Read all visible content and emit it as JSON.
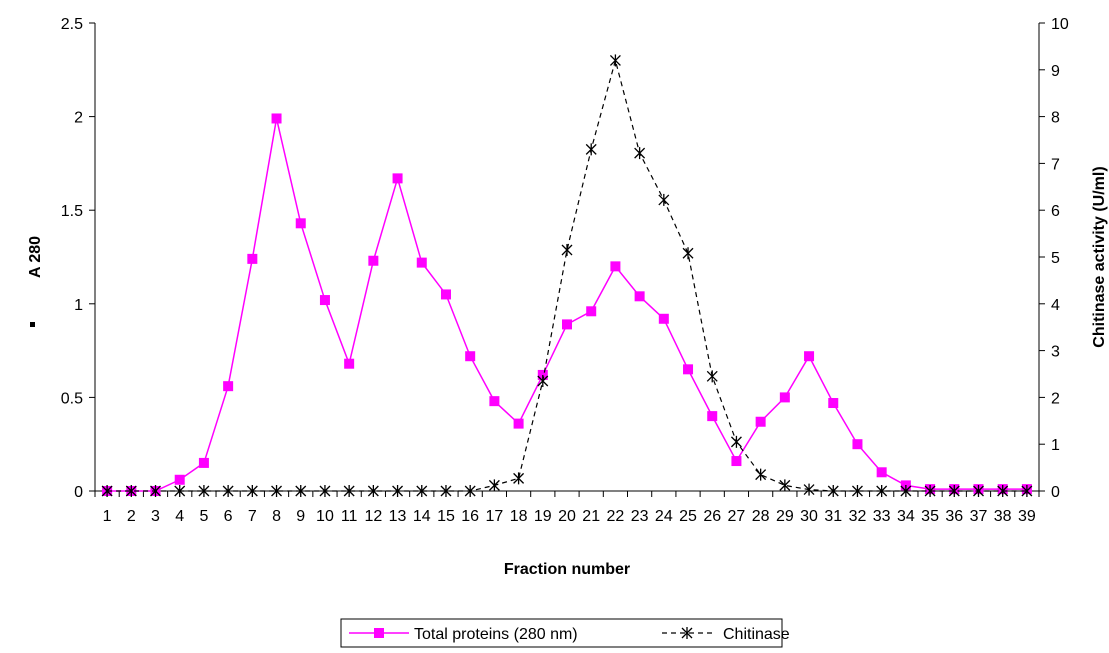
{
  "chart_data": {
    "type": "line",
    "title": "",
    "xlabel": "Fraction number",
    "ylabel_left": "A 280",
    "ylabel_right": "Chitinase activity (U/ml)",
    "x": [
      1,
      2,
      3,
      4,
      5,
      6,
      7,
      8,
      9,
      10,
      11,
      12,
      13,
      14,
      15,
      16,
      17,
      18,
      19,
      20,
      21,
      22,
      23,
      24,
      25,
      26,
      27,
      28,
      29,
      30,
      31,
      32,
      33,
      34,
      35,
      36,
      37,
      38,
      39
    ],
    "ylim_left": [
      0,
      2.5
    ],
    "yticks_left": [
      "0",
      "0.5",
      "1",
      "1.5",
      "2",
      "2.5"
    ],
    "ylim_right": [
      0,
      10
    ],
    "yticks_right": [
      "0",
      "1",
      "2",
      "3",
      "4",
      "5",
      "6",
      "7",
      "8",
      "9",
      "10"
    ],
    "grid": false,
    "legend_position": "bottom",
    "series": [
      {
        "name": "Total proteins (280 nm)",
        "axis": "left",
        "color": "#ff00ff",
        "line_style": "solid",
        "marker": "square",
        "values": [
          0,
          0,
          0,
          0.06,
          0.15,
          0.56,
          1.24,
          1.99,
          1.43,
          1.02,
          0.68,
          1.23,
          1.67,
          1.22,
          1.05,
          0.72,
          0.48,
          0.36,
          0.62,
          0.89,
          0.96,
          1.2,
          1.04,
          0.92,
          0.65,
          0.4,
          0.16,
          0.37,
          0.5,
          0.72,
          0.47,
          0.25,
          0.1,
          0.03,
          0.01,
          0.01,
          0.01,
          0.01,
          0.01
        ]
      },
      {
        "name": "Chitinase",
        "axis": "right",
        "color": "#000000",
        "line_style": "dashed",
        "marker": "asterisk",
        "values": [
          0,
          0,
          0,
          0,
          0,
          0,
          0,
          0,
          0,
          0,
          0,
          0,
          0,
          0,
          0,
          0,
          0.12,
          0.27,
          2.35,
          5.15,
          7.3,
          9.2,
          7.22,
          6.22,
          5.08,
          2.45,
          1.05,
          0.35,
          0.12,
          0.03,
          0,
          0,
          0,
          0,
          0,
          0,
          0,
          0,
          0
        ]
      }
    ]
  }
}
